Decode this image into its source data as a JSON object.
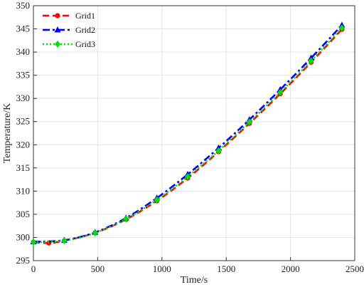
{
  "chart_data": {
    "type": "line",
    "xlabel": "Time/s",
    "ylabel": "Temperature/K",
    "xlim": [
      0,
      2500
    ],
    "ylim": [
      295,
      350
    ],
    "xticks": [
      0,
      500,
      1000,
      1500,
      2000,
      2500
    ],
    "yticks": [
      295,
      300,
      305,
      310,
      315,
      320,
      325,
      330,
      335,
      340,
      345,
      350
    ],
    "grid": true,
    "legend_position": "top-left",
    "series": [
      {
        "name": "Grid1",
        "color": "#ff0000",
        "marker": "circle",
        "line_style": "dash",
        "x": [
          0,
          120,
          240,
          480,
          720,
          960,
          1200,
          1440,
          1680,
          1920,
          2160,
          2400
        ],
        "y": [
          299.0,
          298.8,
          299.3,
          301.0,
          303.9,
          307.9,
          312.8,
          318.5,
          324.6,
          331.0,
          337.8,
          344.9
        ]
      },
      {
        "name": "Grid2",
        "color": "#0000ff",
        "marker": "triangle",
        "line_style": "dashdot",
        "x": [
          0,
          240,
          480,
          720,
          960,
          1200,
          1440,
          1680,
          1920,
          2160,
          2400
        ],
        "y": [
          299.1,
          299.4,
          301.1,
          304.2,
          308.5,
          313.6,
          319.3,
          325.4,
          331.9,
          338.7,
          345.8
        ]
      },
      {
        "name": "Grid3",
        "color": "#00e000",
        "marker": "diamond",
        "line_style": "dot",
        "x": [
          0,
          240,
          480,
          720,
          960,
          1200,
          1440,
          1680,
          1920,
          2160,
          2400
        ],
        "y": [
          299.0,
          299.3,
          301.0,
          304.0,
          308.1,
          313.1,
          318.7,
          324.9,
          331.3,
          338.1,
          345.2
        ]
      }
    ]
  }
}
